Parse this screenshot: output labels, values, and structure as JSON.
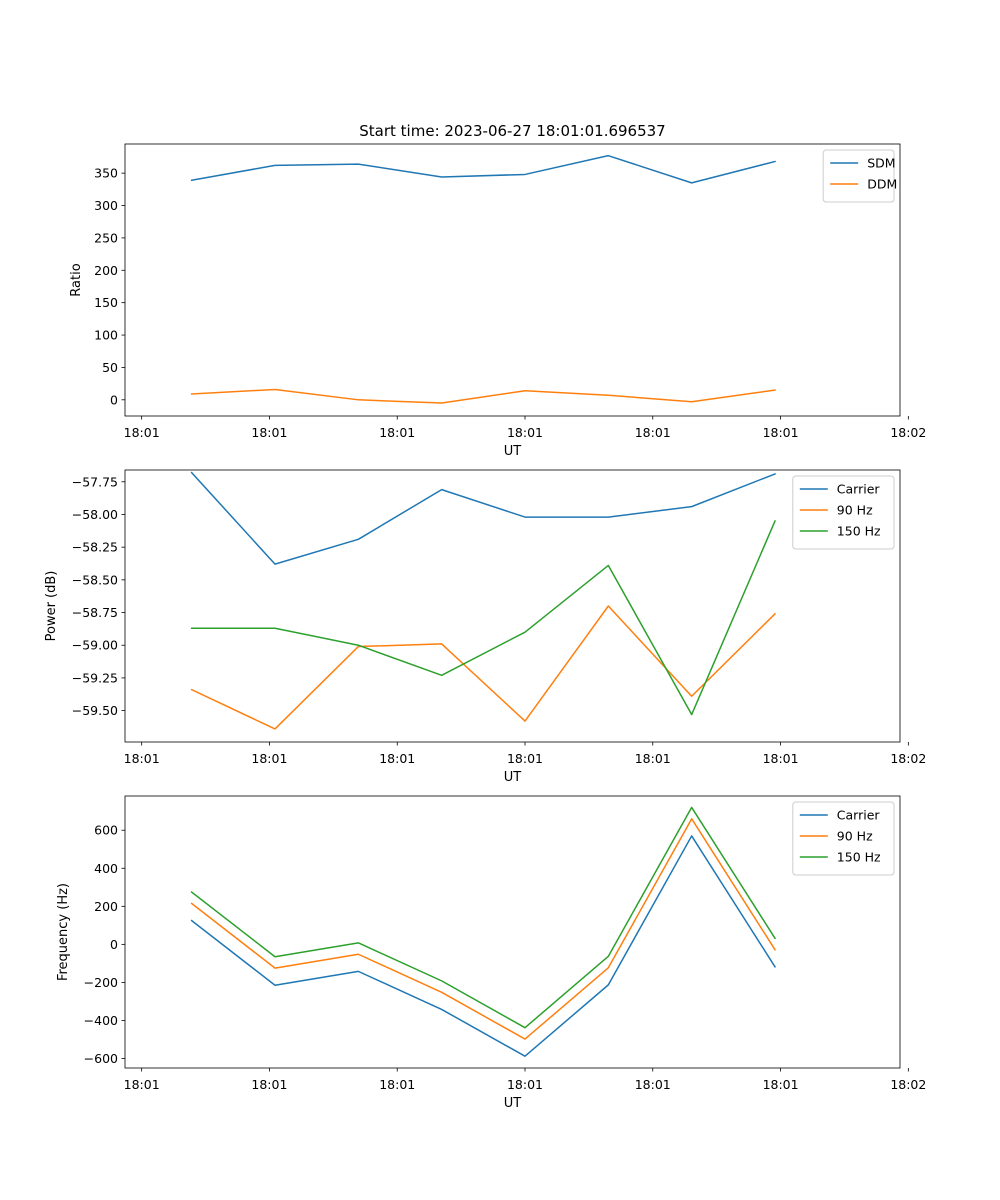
{
  "figure": {
    "suptitle": "Start time: 2023-06-27 18:01:01.696537"
  },
  "chart_data": [
    {
      "type": "line",
      "xlabel": "UT",
      "ylabel": "Ratio",
      "x": [
        1,
        2,
        3,
        4,
        5,
        6,
        7,
        8
      ],
      "xlim": [
        0.2,
        9.5
      ],
      "xticks": [
        0.4,
        1.933,
        3.467,
        5.0,
        6.533,
        8.067,
        9.6
      ],
      "xticklabels": [
        "18:01",
        "18:01",
        "18:01",
        "18:01",
        "18:01",
        "18:01",
        "18:02"
      ],
      "ylim": [
        -25,
        395
      ],
      "yticks": [
        0,
        50,
        100,
        150,
        200,
        250,
        300,
        350
      ],
      "yticklabels": [
        "0",
        "50",
        "100",
        "150",
        "200",
        "250",
        "300",
        "350"
      ],
      "legend": "top-right",
      "series": [
        {
          "name": "SDM",
          "color": "#1f77b4",
          "values": [
            339,
            362,
            364,
            344,
            348,
            377,
            335,
            368
          ]
        },
        {
          "name": "DDM",
          "color": "#ff7f0e",
          "values": [
            9,
            16,
            0,
            -5,
            14,
            7,
            -3,
            15
          ]
        }
      ]
    },
    {
      "type": "line",
      "xlabel": "UT",
      "ylabel": "Power (dB)",
      "x": [
        1,
        2,
        3,
        4,
        5,
        6,
        7,
        8
      ],
      "xlim": [
        0.2,
        9.5
      ],
      "xticks": [
        0.4,
        1.933,
        3.467,
        5.0,
        6.533,
        8.067,
        9.6
      ],
      "xticklabels": [
        "18:01",
        "18:01",
        "18:01",
        "18:01",
        "18:01",
        "18:01",
        "18:02"
      ],
      "ylim": [
        -59.74,
        -57.66
      ],
      "yticks": [
        -59.5,
        -59.25,
        -59.0,
        -58.75,
        -58.5,
        -58.25,
        -58.0,
        -57.75
      ],
      "yticklabels": [
        "−59.50",
        "−59.25",
        "−59.00",
        "−58.75",
        "−58.50",
        "−58.25",
        "−58.00",
        "−57.75"
      ],
      "legend": "top-right",
      "series": [
        {
          "name": "Carrier",
          "color": "#1f77b4",
          "values": [
            -57.68,
            -58.38,
            -58.19,
            -57.81,
            -58.02,
            -58.02,
            -57.94,
            -57.69
          ]
        },
        {
          "name": "90 Hz",
          "color": "#ff7f0e",
          "values": [
            -59.34,
            -59.64,
            -59.01,
            -58.99,
            -59.58,
            -58.7,
            -59.39,
            -58.76
          ]
        },
        {
          "name": "150 Hz",
          "color": "#2ca02c",
          "values": [
            -58.87,
            -58.87,
            -59.0,
            -59.23,
            -58.9,
            -58.39,
            -59.53,
            -58.05
          ]
        }
      ]
    },
    {
      "type": "line",
      "xlabel": "UT",
      "ylabel": "Frequency (Hz)",
      "x": [
        1,
        2,
        3,
        4,
        5,
        6,
        7,
        8
      ],
      "xlim": [
        0.2,
        9.5
      ],
      "xticks": [
        0.4,
        1.933,
        3.467,
        5.0,
        6.533,
        8.067,
        9.6
      ],
      "xticklabels": [
        "18:01",
        "18:01",
        "18:01",
        "18:01",
        "18:01",
        "18:01",
        "18:02"
      ],
      "ylim": [
        -650,
        780
      ],
      "yticks": [
        -600,
        -400,
        -200,
        0,
        200,
        400,
        600
      ],
      "yticklabels": [
        "−600",
        "−400",
        "−200",
        "0",
        "200",
        "400",
        "600"
      ],
      "legend": "top-right",
      "series": [
        {
          "name": "Carrier",
          "color": "#1f77b4",
          "values": [
            125,
            -215,
            -142,
            -342,
            -588,
            -213,
            570,
            -118
          ]
        },
        {
          "name": "90 Hz",
          "color": "#ff7f0e",
          "values": [
            215,
            -125,
            -52,
            -252,
            -498,
            -123,
            660,
            -28
          ]
        },
        {
          "name": "150 Hz",
          "color": "#2ca02c",
          "values": [
            275,
            -65,
            8,
            -192,
            -438,
            -63,
            720,
            32
          ]
        }
      ]
    }
  ]
}
